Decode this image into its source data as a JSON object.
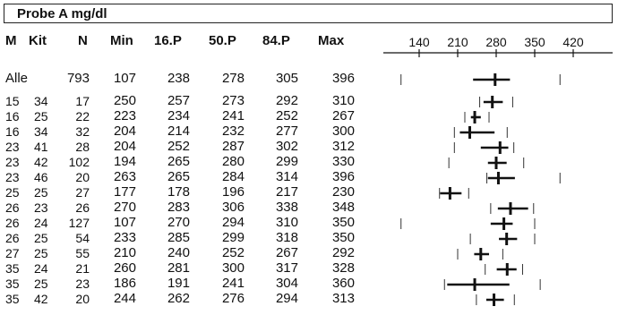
{
  "title": "Probe A  mg/dl",
  "headers": {
    "m": "M",
    "kit": "Kit",
    "n": "N",
    "min": "Min",
    "p16": "16.P",
    "p50": "50.P",
    "p84": "84.P",
    "max": "Max"
  },
  "chart_data": {
    "type": "table",
    "x_axis": {
      "ticks": [
        140,
        210,
        280,
        350,
        420
      ],
      "range": [
        140,
        420
      ]
    },
    "rows": [
      {
        "m": "Alle",
        "kit": "",
        "n": 793,
        "min": 107,
        "p16": 238,
        "p50": 278,
        "p84": 305,
        "max": 396
      },
      {
        "m": "15",
        "kit": "34",
        "n": 17,
        "min": 250,
        "p16": 257,
        "p50": 273,
        "p84": 292,
        "max": 310
      },
      {
        "m": "16",
        "kit": "25",
        "n": 22,
        "min": 223,
        "p16": 234,
        "p50": 241,
        "p84": 252,
        "max": 267
      },
      {
        "m": "16",
        "kit": "34",
        "n": 32,
        "min": 204,
        "p16": 214,
        "p50": 232,
        "p84": 277,
        "max": 300
      },
      {
        "m": "23",
        "kit": "41",
        "n": 28,
        "min": 204,
        "p16": 252,
        "p50": 287,
        "p84": 302,
        "max": 312
      },
      {
        "m": "23",
        "kit": "42",
        "n": 102,
        "min": 194,
        "p16": 265,
        "p50": 280,
        "p84": 299,
        "max": 330
      },
      {
        "m": "23",
        "kit": "46",
        "n": 20,
        "min": 263,
        "p16": 265,
        "p50": 284,
        "p84": 314,
        "max": 396
      },
      {
        "m": "25",
        "kit": "25",
        "n": 27,
        "min": 177,
        "p16": 178,
        "p50": 196,
        "p84": 217,
        "max": 230
      },
      {
        "m": "26",
        "kit": "23",
        "n": 26,
        "min": 270,
        "p16": 283,
        "p50": 306,
        "p84": 338,
        "max": 348
      },
      {
        "m": "26",
        "kit": "24",
        "n": 127,
        "min": 107,
        "p16": 270,
        "p50": 294,
        "p84": 310,
        "max": 350
      },
      {
        "m": "26",
        "kit": "25",
        "n": 54,
        "min": 233,
        "p16": 285,
        "p50": 299,
        "p84": 318,
        "max": 350
      },
      {
        "m": "27",
        "kit": "25",
        "n": 55,
        "min": 210,
        "p16": 240,
        "p50": 252,
        "p84": 267,
        "max": 292
      },
      {
        "m": "35",
        "kit": "24",
        "n": 21,
        "min": 260,
        "p16": 281,
        "p50": 300,
        "p84": 317,
        "max": 328
      },
      {
        "m": "35",
        "kit": "25",
        "n": 23,
        "min": 186,
        "p16": 191,
        "p50": 241,
        "p84": 304,
        "max": 360
      },
      {
        "m": "35",
        "kit": "42",
        "n": 20,
        "min": 244,
        "p16": 262,
        "p50": 276,
        "p84": 294,
        "max": 313
      }
    ]
  }
}
